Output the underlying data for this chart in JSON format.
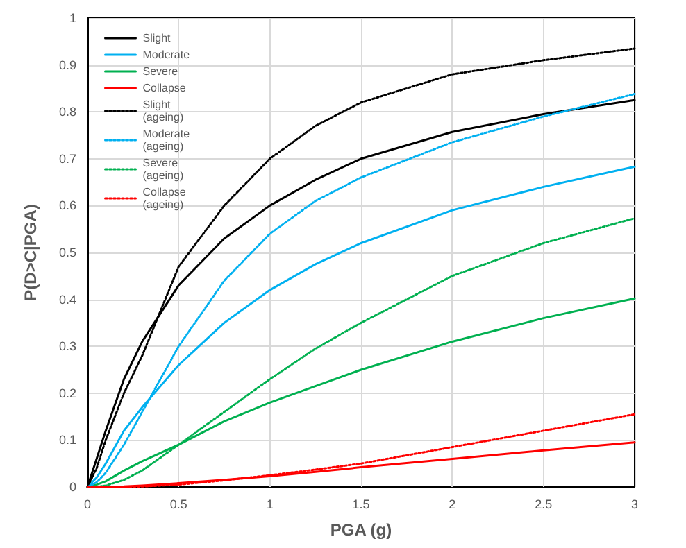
{
  "chart_data": {
    "type": "line",
    "xlabel": "PGA (g)",
    "ylabel": "P(D>C|PGA)",
    "xlim": [
      0,
      3
    ],
    "xticks": [
      0,
      0.5,
      1,
      1.5,
      2,
      2.5,
      3
    ],
    "ylim": [
      0,
      1
    ],
    "yticks": [
      0,
      0.1,
      0.2,
      0.3,
      0.4,
      0.5,
      0.6,
      0.7,
      0.8,
      0.9,
      1
    ],
    "grid": true,
    "legend": "top left",
    "marker": "none",
    "x": [
      0,
      0.05,
      0.1,
      0.2,
      0.3,
      0.5,
      0.75,
      1,
      1.25,
      1.5,
      2,
      2.5,
      3
    ],
    "series": [
      {
        "name": "Slight",
        "color": "#000000",
        "line_style": "solid",
        "values": [
          0,
          0.06,
          0.12,
          0.23,
          0.31,
          0.43,
          0.53,
          0.6,
          0.655,
          0.7,
          0.757,
          0.795,
          0.825
        ]
      },
      {
        "name": "Moderate",
        "color": "#00b0f0",
        "line_style": "solid",
        "values": [
          0,
          0.02,
          0.05,
          0.12,
          0.17,
          0.26,
          0.35,
          0.42,
          0.475,
          0.52,
          0.59,
          0.64,
          0.683
        ]
      },
      {
        "name": "Severe",
        "color": "#00b050",
        "line_style": "solid",
        "values": [
          0,
          0.005,
          0.012,
          0.035,
          0.055,
          0.09,
          0.14,
          0.18,
          0.215,
          0.25,
          0.31,
          0.36,
          0.402
        ]
      },
      {
        "name": "Collapse",
        "color": "#ff0000",
        "line_style": "solid",
        "values": [
          0,
          0,
          0,
          0.001,
          0.003,
          0.008,
          0.015,
          0.023,
          0.032,
          0.042,
          0.06,
          0.078,
          0.095
        ]
      },
      {
        "name": "Slight (ageing)",
        "color": "#000000",
        "line_style": "dotted",
        "values": [
          0,
          0.04,
          0.1,
          0.2,
          0.28,
          0.47,
          0.6,
          0.7,
          0.77,
          0.82,
          0.88,
          0.91,
          0.935
        ]
      },
      {
        "name": "Moderate (ageing)",
        "color": "#00b0f0",
        "line_style": "dotted",
        "values": [
          0,
          0.01,
          0.03,
          0.09,
          0.16,
          0.3,
          0.44,
          0.54,
          0.61,
          0.66,
          0.735,
          0.79,
          0.838
        ]
      },
      {
        "name": "Severe (ageing)",
        "color": "#00b050",
        "line_style": "dotted",
        "values": [
          0,
          0,
          0.003,
          0.015,
          0.035,
          0.09,
          0.16,
          0.23,
          0.295,
          0.35,
          0.45,
          0.52,
          0.573
        ]
      },
      {
        "name": "Collapse (ageing)",
        "color": "#ff0000",
        "line_style": "dotted",
        "values": [
          0,
          0,
          0,
          0,
          0.001,
          0.005,
          0.014,
          0.025,
          0.037,
          0.05,
          0.085,
          0.12,
          0.155
        ]
      }
    ]
  }
}
